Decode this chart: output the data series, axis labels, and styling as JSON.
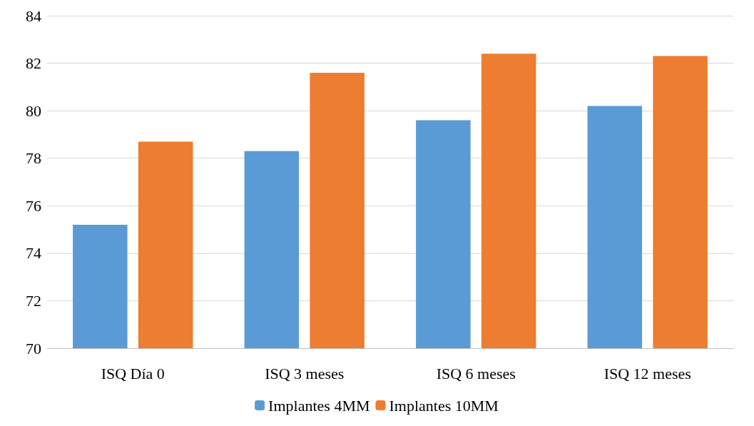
{
  "chart_data": {
    "type": "bar",
    "categories": [
      "ISQ Día 0",
      "ISQ 3 meses",
      "ISQ 6 meses",
      "ISQ 12 meses"
    ],
    "series": [
      {
        "name": "Implantes 4MM",
        "color": "#5b9bd5",
        "values": [
          75.2,
          78.3,
          79.6,
          80.2
        ]
      },
      {
        "name": "Implantes 10MM",
        "color": "#ed7d31",
        "values": [
          78.7,
          81.6,
          82.4,
          82.3
        ]
      }
    ],
    "ylim": [
      70,
      84
    ],
    "yticks": [
      70,
      72,
      74,
      76,
      78,
      80,
      82,
      84
    ],
    "grid": "y",
    "legend": "bottom"
  }
}
